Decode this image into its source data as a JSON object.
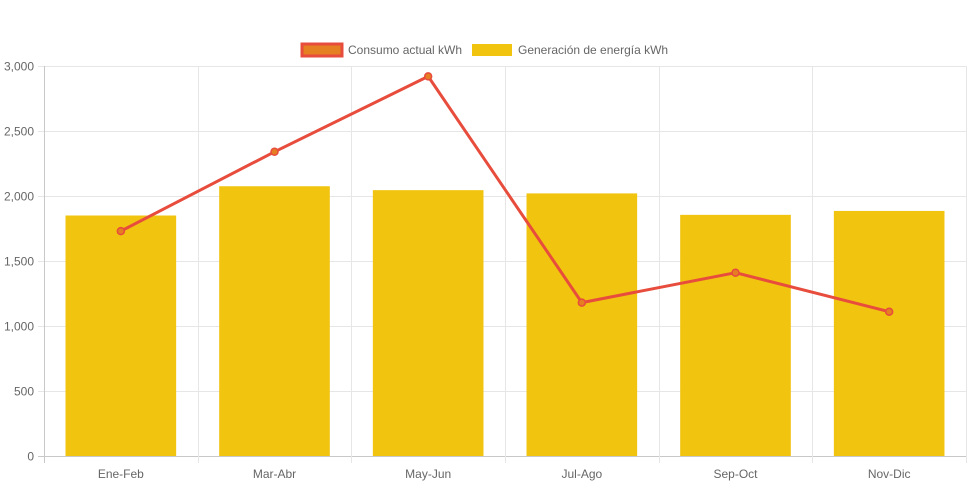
{
  "chart_data": {
    "type": "bar",
    "categories": [
      "Ene-Feb",
      "Mar-Abr",
      "May-Jun",
      "Jul-Ago",
      "Sep-Oct",
      "Nov-Dic"
    ],
    "series": [
      {
        "name": "Consumo actual kWh",
        "type": "line",
        "values": [
          1730,
          2340,
          2920,
          1180,
          1410,
          1110
        ],
        "color": "#e74c3c",
        "legend_fill": "#e67e22"
      },
      {
        "name": "Generación de energía kWh",
        "type": "bar",
        "values": [
          1850,
          2075,
          2045,
          2020,
          1855,
          1885
        ],
        "color": "#f1c40f"
      }
    ],
    "ylim": [
      0,
      3000
    ],
    "yticks": [
      0,
      500,
      1000,
      1500,
      2000,
      2500,
      3000
    ],
    "ytick_labels": [
      "0",
      "500",
      "1,000",
      "1,500",
      "2,000",
      "2,500",
      "3,000"
    ],
    "grid": true,
    "legend_position": "top-center",
    "title": "",
    "xlabel": "",
    "ylabel": ""
  }
}
